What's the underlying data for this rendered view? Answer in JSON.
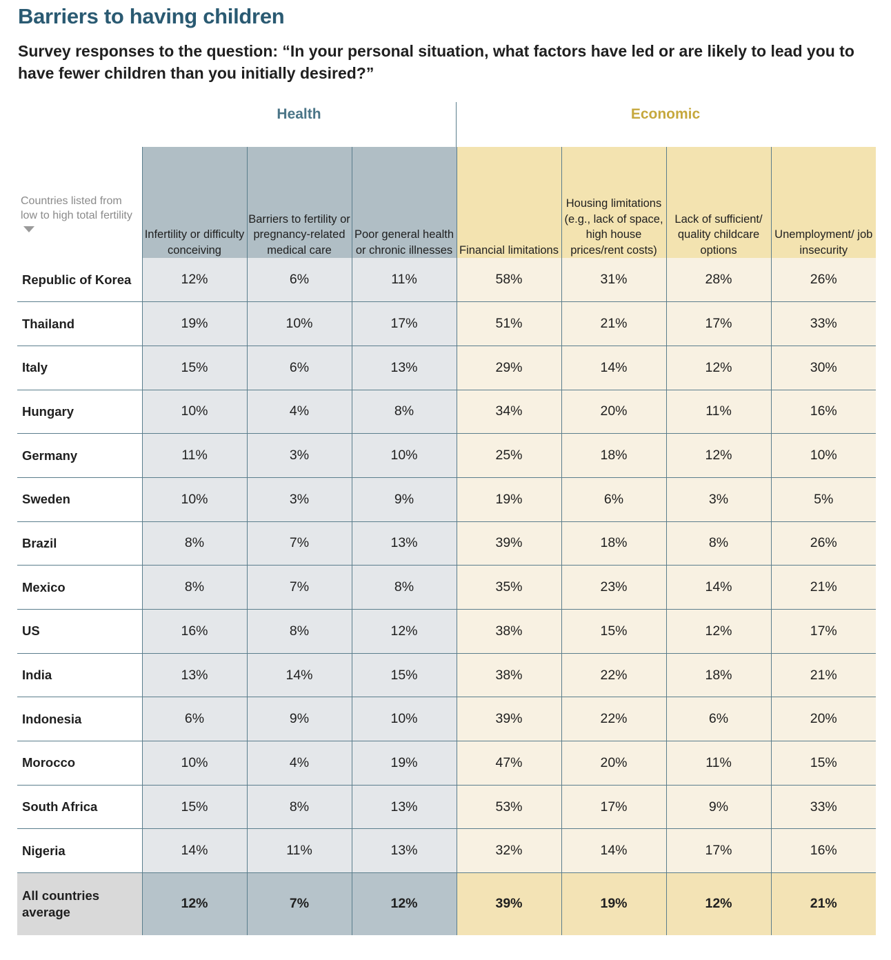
{
  "title": "Barriers to having children",
  "subtitle": "Survey responses to the question: “In your personal situation, what factors have led or are likely to lead you to have fewer children than you initially desired?”",
  "groups": {
    "health": "Health",
    "economic": "Economic"
  },
  "sort_note": "Countries listed from low to high total fertility",
  "colors": {
    "title": "#2a5a72",
    "health_header": "#b0bec5",
    "health_cell": "#e4e7ea",
    "economic_header": "#f3e3b0",
    "economic_cell": "#f8f1e2",
    "average_row": "#d9d9d9"
  },
  "chart_data": {
    "type": "table",
    "title": "Barriers to having children",
    "columns": [
      {
        "label": "Infertility or difficulty conceiving",
        "group": "health"
      },
      {
        "label": "Barriers to fertility or pregnancy-related medical care",
        "group": "health"
      },
      {
        "label": "Poor general health or chronic illnesses",
        "group": "health"
      },
      {
        "label": "Financial limitations",
        "group": "economic"
      },
      {
        "label": "Housing limitations (e.g., lack of space, high house prices/rent costs)",
        "group": "economic"
      },
      {
        "label": "Lack of sufficient/ quality childcare options",
        "group": "economic"
      },
      {
        "label": "Unemployment/ job insecurity",
        "group": "economic"
      }
    ],
    "rows": [
      {
        "country": "Republic of Korea",
        "values": [
          "12%",
          "6%",
          "11%",
          "58%",
          "31%",
          "28%",
          "26%"
        ]
      },
      {
        "country": "Thailand",
        "values": [
          "19%",
          "10%",
          "17%",
          "51%",
          "21%",
          "17%",
          "33%"
        ]
      },
      {
        "country": "Italy",
        "values": [
          "15%",
          "6%",
          "13%",
          "29%",
          "14%",
          "12%",
          "30%"
        ]
      },
      {
        "country": "Hungary",
        "values": [
          "10%",
          "4%",
          "8%",
          "34%",
          "20%",
          "11%",
          "16%"
        ]
      },
      {
        "country": "Germany",
        "values": [
          "11%",
          "3%",
          "10%",
          "25%",
          "18%",
          "12%",
          "10%"
        ]
      },
      {
        "country": "Sweden",
        "values": [
          "10%",
          "3%",
          "9%",
          "19%",
          "6%",
          "3%",
          "5%"
        ]
      },
      {
        "country": "Brazil",
        "values": [
          "8%",
          "7%",
          "13%",
          "39%",
          "18%",
          "8%",
          "26%"
        ]
      },
      {
        "country": "Mexico",
        "values": [
          "8%",
          "7%",
          "8%",
          "35%",
          "23%",
          "14%",
          "21%"
        ]
      },
      {
        "country": "US",
        "values": [
          "16%",
          "8%",
          "12%",
          "38%",
          "15%",
          "12%",
          "17%"
        ]
      },
      {
        "country": "India",
        "values": [
          "13%",
          "14%",
          "15%",
          "38%",
          "22%",
          "18%",
          "21%"
        ]
      },
      {
        "country": "Indonesia",
        "values": [
          "6%",
          "9%",
          "10%",
          "39%",
          "22%",
          "6%",
          "20%"
        ]
      },
      {
        "country": "Morocco",
        "values": [
          "10%",
          "4%",
          "19%",
          "47%",
          "20%",
          "11%",
          "15%"
        ]
      },
      {
        "country": "South Africa",
        "values": [
          "15%",
          "8%",
          "13%",
          "53%",
          "17%",
          "9%",
          "33%"
        ]
      },
      {
        "country": "Nigeria",
        "values": [
          "14%",
          "11%",
          "13%",
          "32%",
          "14%",
          "17%",
          "16%"
        ]
      }
    ],
    "average": {
      "label": "All countries average",
      "values": [
        "12%",
        "7%",
        "12%",
        "39%",
        "19%",
        "12%",
        "21%"
      ]
    }
  }
}
